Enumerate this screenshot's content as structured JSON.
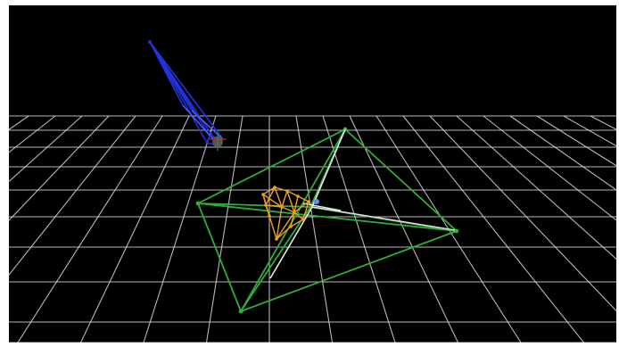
{
  "viewport": {
    "background": "#000000",
    "grid_color": "#d8d8d8",
    "grid_enabled": true
  },
  "objects": [
    {
      "name": "blue-camera-frustum",
      "color": "#2233dd",
      "description_icon": "camera-frustum-icon"
    },
    {
      "name": "green-pyramid-wireframe",
      "color": "#2fae3a"
    },
    {
      "name": "orange-cluster-wireframe",
      "color": "#f0a020"
    },
    {
      "name": "white-edges",
      "color": "#e8e8e8"
    },
    {
      "name": "origin-marker",
      "color": "#cc2222"
    }
  ]
}
